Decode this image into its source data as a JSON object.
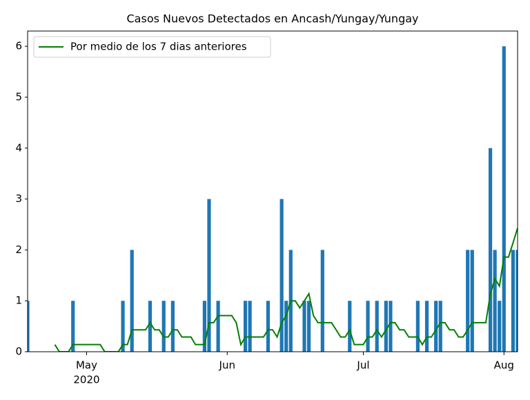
{
  "chart_data": {
    "type": "bar-line",
    "title": "Casos Nuevos Detectados en Ancash/Yungay/Yungay",
    "year_label": "2020",
    "categories": [
      null,
      null,
      null,
      null,
      null,
      null,
      null,
      null,
      null,
      null,
      null,
      null,
      null,
      "May",
      null,
      null,
      null,
      null,
      null,
      null,
      null,
      null,
      null,
      null,
      null,
      null,
      null,
      null,
      null,
      null,
      null,
      null,
      null,
      null,
      null,
      null,
      null,
      null,
      null,
      null,
      null,
      null,
      null,
      null,
      "Jun",
      null,
      null,
      null,
      null,
      null,
      null,
      null,
      null,
      null,
      null,
      null,
      null,
      null,
      null,
      null,
      null,
      null,
      null,
      null,
      null,
      null,
      null,
      null,
      null,
      null,
      null,
      null,
      null,
      null,
      "Jul",
      null,
      null,
      null,
      null,
      null,
      null,
      null,
      null,
      null,
      null,
      null,
      null,
      null,
      null,
      null,
      null,
      null,
      null,
      null,
      null,
      null,
      null,
      null,
      null,
      null,
      null,
      null,
      null,
      null,
      null,
      "Aug",
      null,
      null,
      null
    ],
    "series": [
      {
        "kind": "bar",
        "color": "#1f77b4",
        "values": [
          1,
          0,
          0,
          0,
          0,
          0,
          0,
          0,
          0,
          0,
          1,
          0,
          0,
          0,
          0,
          0,
          0,
          0,
          0,
          0,
          0,
          1,
          0,
          2,
          0,
          0,
          0,
          1,
          0,
          0,
          1,
          0,
          1,
          0,
          0,
          0,
          0,
          0,
          0,
          1,
          3,
          0,
          1,
          0,
          0,
          0,
          0,
          0,
          1,
          1,
          0,
          0,
          0,
          1,
          0,
          0,
          3,
          1,
          2,
          0,
          0,
          1,
          1,
          0,
          0,
          2,
          0,
          0,
          0,
          0,
          0,
          1,
          0,
          0,
          0,
          1,
          0,
          1,
          0,
          1,
          1,
          0,
          0,
          0,
          0,
          0,
          1,
          0,
          1,
          0,
          1,
          1,
          0,
          0,
          0,
          0,
          0,
          2,
          2,
          0,
          0,
          0,
          4,
          2,
          1,
          6,
          0,
          2,
          2
        ]
      },
      {
        "kind": "line",
        "name": "Por medio de los 7 dias anteriores",
        "color": "#008000",
        "values": [
          null,
          null,
          null,
          null,
          null,
          null,
          0.14,
          0,
          0,
          0,
          0.14,
          0.14,
          0.14,
          0.14,
          0.14,
          0.14,
          0.14,
          0,
          0,
          0,
          0,
          0.14,
          0.14,
          0.43,
          0.43,
          0.43,
          0.43,
          0.57,
          0.43,
          0.43,
          0.29,
          0.29,
          0.43,
          0.43,
          0.29,
          0.29,
          0.29,
          0.14,
          0.14,
          0.14,
          0.57,
          0.57,
          0.71,
          0.71,
          0.71,
          0.71,
          0.57,
          0.14,
          0.29,
          0.29,
          0.29,
          0.29,
          0.29,
          0.43,
          0.43,
          0.29,
          0.57,
          0.71,
          1,
          1,
          0.86,
          1,
          1.14,
          0.71,
          0.57,
          0.57,
          0.57,
          0.57,
          0.43,
          0.29,
          0.29,
          0.43,
          0.14,
          0.14,
          0.14,
          0.29,
          0.29,
          0.43,
          0.29,
          0.43,
          0.57,
          0.57,
          0.43,
          0.43,
          0.29,
          0.29,
          0.29,
          0.14,
          0.29,
          0.29,
          0.43,
          0.57,
          0.57,
          0.43,
          0.43,
          0.29,
          0.29,
          0.43,
          0.57,
          0.57,
          0.57,
          0.57,
          1.14,
          1.43,
          1.29,
          1.86,
          1.86,
          2.14,
          2.43
        ]
      }
    ],
    "ylim": [
      0,
      6.3
    ],
    "yticks": [
      0,
      1,
      2,
      3,
      4,
      5,
      6
    ],
    "legend": "upper left"
  }
}
